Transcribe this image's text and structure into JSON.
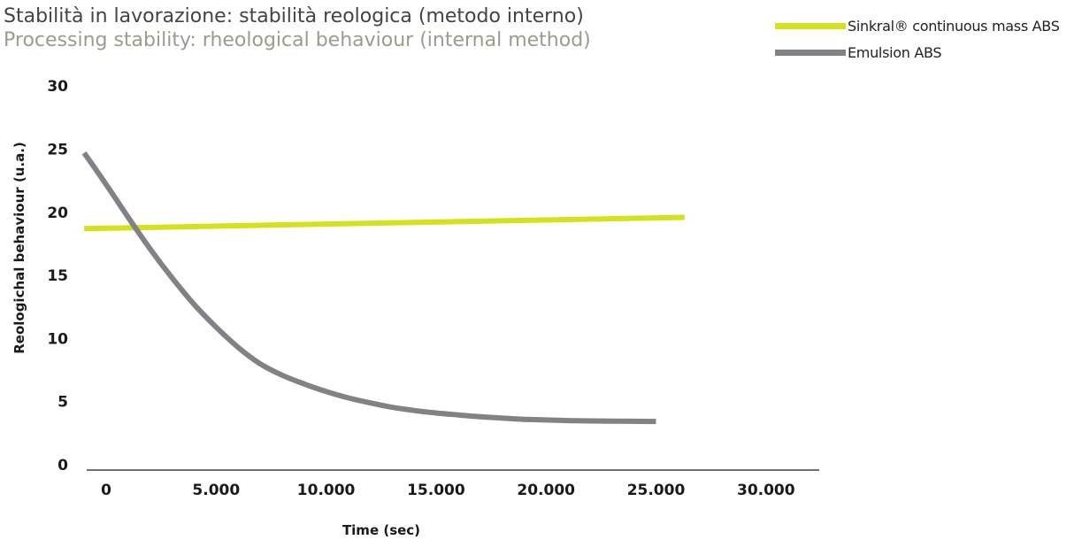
{
  "chart_data": {
    "type": "line",
    "title": "Stabilità in lavorazione: stabilità reologica (metodo interno)",
    "subtitle": "Processing stability: rheological behaviour (internal method)",
    "xlabel": "Time (sec)",
    "ylabel": "Reologichal behaviour (u.a.)",
    "xlim": [
      -1000,
      31500
    ],
    "ylim": [
      0,
      30
    ],
    "x_ticks": [
      0,
      5000,
      10000,
      15000,
      20000,
      25000,
      30000
    ],
    "x_tick_labels": [
      "0",
      "5.000",
      "10.000",
      "15.000",
      "20.000",
      "25.000",
      "30.000"
    ],
    "y_ticks": [
      0,
      5,
      10,
      15,
      20,
      25,
      30
    ],
    "y_tick_labels": [
      "0",
      "5",
      "10",
      "15",
      "20",
      "25",
      "30"
    ],
    "grid": false,
    "legend_position": "top-right",
    "series": [
      {
        "name": "Sinkral® continuous mass ABS",
        "color": "#d4e21d",
        "x": [
          -1000,
          26300
        ],
        "y": [
          18.7,
          19.6
        ]
      },
      {
        "name": "Emulsion ABS",
        "color": "#808285",
        "x": [
          -1000,
          0,
          1000,
          2000,
          3000,
          4000,
          5000,
          6000,
          7000,
          8000,
          9000,
          10000,
          11000,
          12000,
          13000,
          14000,
          15000,
          16000,
          17000,
          18000,
          19000,
          20000,
          21000,
          22000,
          23000,
          24000,
          25000
        ],
        "y": [
          24.7,
          22.2,
          19.6,
          17.1,
          14.8,
          12.7,
          10.9,
          9.3,
          8.0,
          7.1,
          6.4,
          5.8,
          5.3,
          4.9,
          4.55,
          4.3,
          4.1,
          3.95,
          3.8,
          3.7,
          3.6,
          3.55,
          3.5,
          3.47,
          3.45,
          3.44,
          3.43
        ]
      }
    ]
  }
}
